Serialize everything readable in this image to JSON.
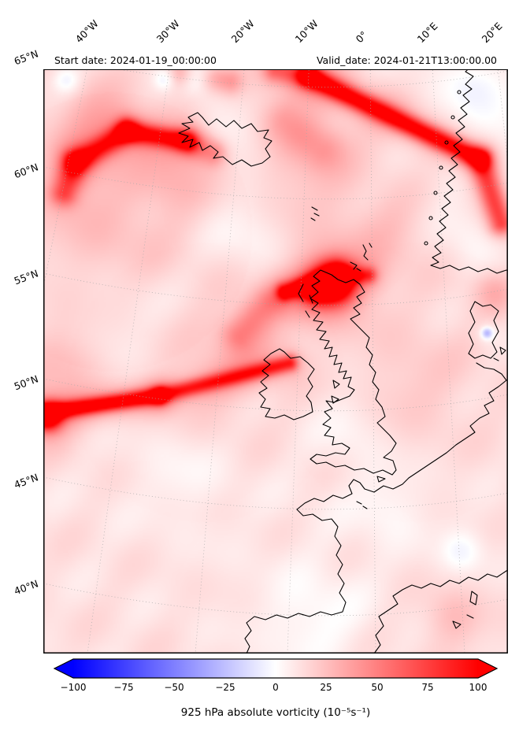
{
  "figure": {
    "header": {
      "start_date_label": "Start date: 2024-01-19_00:00:00",
      "valid_date_label": "Valid_date: 2024-01-21T13:00:00.00"
    }
  },
  "axes": {
    "lon_labels": [
      "40°W",
      "30°W",
      "20°W",
      "10°W",
      "0°",
      "10°E",
      "20°E"
    ],
    "lat_labels": [
      "65°N",
      "60°N",
      "55°N",
      "50°N",
      "45°N",
      "40°N"
    ]
  },
  "colorbar": {
    "tick_labels": [
      "−100",
      "−75",
      "−50",
      "−25",
      "0",
      "25",
      "50",
      "75",
      "100"
    ],
    "ticks": [
      -100,
      -75,
      -50,
      -25,
      0,
      25,
      50,
      75,
      100
    ],
    "label": "925 hPa absolute vorticity (10⁻⁵s⁻¹)",
    "min_color": "#0000ff",
    "mid_color": "#ffffff",
    "max_color": "#ff0000",
    "extend": "both"
  },
  "chart_data": {
    "type": "heatmap",
    "variable": "925 hPa absolute vorticity",
    "units": "10⁻⁵ s⁻¹",
    "colormap": "bwr",
    "value_range": [
      -100,
      100
    ],
    "start_date": "2024-01-19_00:00:00",
    "valid_date": "2024-01-21T13:00:00.00",
    "region": {
      "lon_range": [
        "40°W",
        "20°E"
      ],
      "lat_range": [
        "40°N",
        "65°N"
      ]
    },
    "notable_features": [
      "strong vorticity streak along Norwegian coast",
      "curved vorticity filament southeast of Iceland/Greenland gap",
      "vorticity maximum over western Scotland / Hebrides",
      "long zonal vorticity filament west of Ireland near 49-52N",
      "weak negative (blue) patches near top edge and near Denmark"
    ],
    "field": {
      "background": 12,
      "noise_amp": 2.5,
      "features": [
        {
          "kind": "streak",
          "x1": 0.57,
          "y1": 0.042,
          "x2": 0.94,
          "y2": 0.18,
          "amp": 85,
          "sigma": 0.015
        },
        {
          "kind": "streak",
          "x1": 0.94,
          "y1": 0.18,
          "x2": 0.985,
          "y2": 0.285,
          "amp": 55,
          "sigma": 0.018
        },
        {
          "kind": "streak",
          "x1": 0.5,
          "y1": 0.032,
          "x2": 0.57,
          "y2": 0.042,
          "amp": 38,
          "sigma": 0.018
        },
        {
          "kind": "streak",
          "x1": 0.07,
          "y1": 0.185,
          "x2": 0.18,
          "y2": 0.133,
          "amp": 62,
          "sigma": 0.017
        },
        {
          "kind": "streak",
          "x1": 0.18,
          "y1": 0.133,
          "x2": 0.31,
          "y2": 0.15,
          "amp": 70,
          "sigma": 0.015
        },
        {
          "kind": "streak",
          "x1": 0.31,
          "y1": 0.15,
          "x2": 0.365,
          "y2": 0.168,
          "amp": 30,
          "sigma": 0.02
        },
        {
          "kind": "streak",
          "x1": 0.045,
          "y1": 0.235,
          "x2": 0.07,
          "y2": 0.185,
          "amp": 45,
          "sigma": 0.02
        },
        {
          "kind": "streak",
          "x1": 0.52,
          "y1": 0.4,
          "x2": 0.635,
          "y2": 0.373,
          "amp": 75,
          "sigma": 0.013
        },
        {
          "kind": "streak",
          "x1": 0.635,
          "y1": 0.373,
          "x2": 0.7,
          "y2": 0.372,
          "amp": 45,
          "sigma": 0.012
        },
        {
          "kind": "streak",
          "x1": 0.005,
          "y1": 0.6,
          "x2": 0.25,
          "y2": 0.572,
          "amp": 88,
          "sigma": 0.012
        },
        {
          "kind": "streak",
          "x1": 0.25,
          "y1": 0.572,
          "x2": 0.53,
          "y2": 0.518,
          "amp": 62,
          "sigma": 0.012
        },
        {
          "kind": "streak",
          "x1": 0.42,
          "y1": 0.47,
          "x2": 0.48,
          "y2": 0.42,
          "amp": 22,
          "sigma": 0.025
        },
        {
          "kind": "streak",
          "x1": 0.3,
          "y1": 0.036,
          "x2": 0.4,
          "y2": 0.05,
          "amp": 26,
          "sigma": 0.02
        },
        {
          "kind": "streak",
          "x1": 0.52,
          "y1": 0.115,
          "x2": 0.6,
          "y2": 0.16,
          "amp": 20,
          "sigma": 0.035
        },
        {
          "kind": "blob",
          "x": 0.625,
          "y": 0.385,
          "amp": 115,
          "sigma": 0.028
        },
        {
          "kind": "blob",
          "x": 0.585,
          "y": 0.397,
          "amp": 60,
          "sigma": 0.02
        },
        {
          "kind": "blob",
          "x": 0.01,
          "y": 0.607,
          "amp": 90,
          "sigma": 0.02
        },
        {
          "kind": "blob",
          "x": 0.33,
          "y": 0.042,
          "amp": -28,
          "sigma": 0.022
        },
        {
          "kind": "blob",
          "x": 0.05,
          "y": 0.048,
          "amp": -16,
          "sigma": 0.02
        },
        {
          "kind": "blob",
          "x": 0.26,
          "y": 0.048,
          "amp": -14,
          "sigma": 0.015
        },
        {
          "kind": "blob",
          "x": 0.955,
          "y": 0.468,
          "amp": -35,
          "sigma": 0.008
        },
        {
          "kind": "blob",
          "x": 0.9,
          "y": 0.83,
          "amp": -12,
          "sigma": 0.03
        },
        {
          "kind": "blob",
          "x": 0.4,
          "y": 0.135,
          "amp": -11,
          "sigma": 0.05
        },
        {
          "kind": "blob",
          "x": 0.95,
          "y": 0.15,
          "amp": -11,
          "sigma": 0.07
        },
        {
          "kind": "blob",
          "x": 0.93,
          "y": 0.3,
          "amp": -9,
          "sigma": 0.05
        },
        {
          "kind": "blob",
          "x": 0.58,
          "y": 0.94,
          "amp": -10,
          "sigma": 0.07
        },
        {
          "kind": "blob",
          "x": 0.44,
          "y": 0.3,
          "amp": -9,
          "sigma": 0.06
        },
        {
          "kind": "blob",
          "x": 0.74,
          "y": 0.75,
          "amp": -8,
          "sigma": 0.05
        },
        {
          "kind": "blob",
          "x": 0.18,
          "y": 0.45,
          "amp": -6,
          "sigma": 0.08
        },
        {
          "kind": "blob",
          "x": 0.3,
          "y": 0.7,
          "amp": -7,
          "sigma": 0.07
        },
        {
          "kind": "blob",
          "x": 0.65,
          "y": 0.62,
          "amp": -7,
          "sigma": 0.05
        },
        {
          "kind": "blob",
          "x": 0.92,
          "y": 0.06,
          "amp": -8,
          "sigma": 0.04
        },
        {
          "kind": "blob",
          "x": 0.15,
          "y": 0.3,
          "amp": 10,
          "sigma": 0.1
        },
        {
          "kind": "blob",
          "x": 0.55,
          "y": 0.22,
          "amp": 8,
          "sigma": 0.08
        },
        {
          "kind": "blob",
          "x": 0.8,
          "y": 0.55,
          "amp": 8,
          "sigma": 0.08
        },
        {
          "kind": "blob",
          "x": 0.35,
          "y": 0.55,
          "amp": 8,
          "sigma": 0.08
        },
        {
          "kind": "blob",
          "x": 0.75,
          "y": 0.3,
          "amp": 10,
          "sigma": 0.06
        },
        {
          "kind": "blob",
          "x": 0.97,
          "y": 0.4,
          "amp": 14,
          "sigma": 0.03
        },
        {
          "kind": "blob",
          "x": 0.88,
          "y": 0.94,
          "amp": 12,
          "sigma": 0.04
        },
        {
          "kind": "blob",
          "x": 0.05,
          "y": 0.52,
          "amp": 12,
          "sigma": 0.05
        },
        {
          "kind": "blob",
          "x": 0.45,
          "y": 0.47,
          "amp": 10,
          "sigma": 0.05
        },
        {
          "kind": "blob",
          "x": 0.1,
          "y": 0.1,
          "amp": 14,
          "sigma": 0.05
        },
        {
          "kind": "blob",
          "x": 0.28,
          "y": 0.21,
          "amp": 12,
          "sigma": 0.05
        }
      ]
    }
  }
}
